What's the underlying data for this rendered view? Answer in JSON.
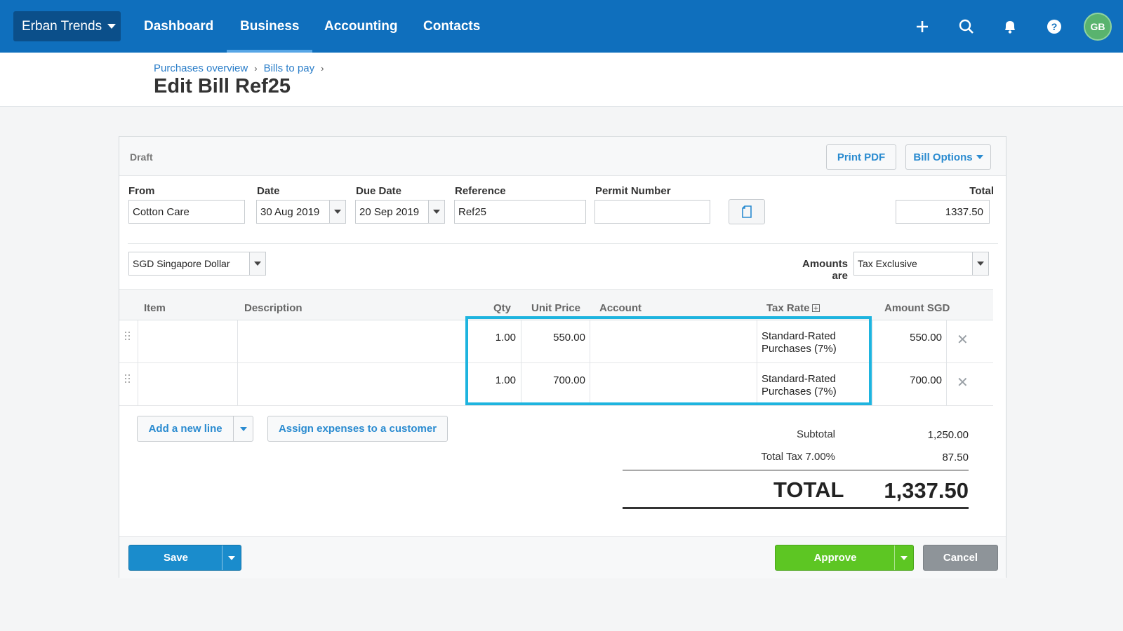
{
  "nav": {
    "org": "Erban Trends",
    "items": [
      "Dashboard",
      "Business",
      "Accounting",
      "Contacts"
    ],
    "active": "Business",
    "avatar_initials": "GB",
    "brand_color": "#0f6fbd"
  },
  "breadcrumb": [
    "Purchases overview",
    "Bills to pay"
  ],
  "page_title": "Edit Bill Ref25",
  "bill": {
    "status": "Draft",
    "print_pdf": "Print PDF",
    "bill_options": "Bill Options",
    "labels": {
      "from": "From",
      "date": "Date",
      "due_date": "Due Date",
      "reference": "Reference",
      "permit": "Permit Number",
      "total": "Total"
    },
    "from": "Cotton Care",
    "date": "30 Aug 2019",
    "due_date": "20 Sep 2019",
    "reference": "Ref25",
    "permit_number": "",
    "total": "1337.50",
    "currency": "SGD Singapore Dollar",
    "amounts_are_label": "Amounts are",
    "amounts_are": "Tax Exclusive"
  },
  "table": {
    "headers": [
      "Item",
      "Description",
      "Qty",
      "Unit Price",
      "Account",
      "Tax Rate",
      "Amount SGD"
    ],
    "rows": [
      {
        "item": "",
        "description": "",
        "qty": "1.00",
        "unit_price": "550.00",
        "account": "",
        "tax_rate_1": "Standard-Rated",
        "tax_rate_2": "Purchases (7%)",
        "amount": "550.00"
      },
      {
        "item": "",
        "description": "",
        "qty": "1.00",
        "unit_price": "700.00",
        "account": "",
        "tax_rate_1": "Standard-Rated",
        "tax_rate_2": "Purchases (7%)",
        "amount": "700.00"
      }
    ]
  },
  "actions": {
    "add_line": "Add a new line",
    "assign": "Assign expenses to a customer",
    "save": "Save",
    "approve": "Approve",
    "cancel": "Cancel"
  },
  "summary": {
    "subtotal_label": "Subtotal",
    "subtotal": "1,250.00",
    "tax_label": "Total Tax 7.00%",
    "tax": "87.50",
    "total_label": "TOTAL",
    "total": "1,337.50"
  },
  "colors": {
    "highlight": "#1eb4df",
    "save": "#1a8ccc",
    "approve": "#5dc623",
    "cancel": "#8e9499"
  }
}
